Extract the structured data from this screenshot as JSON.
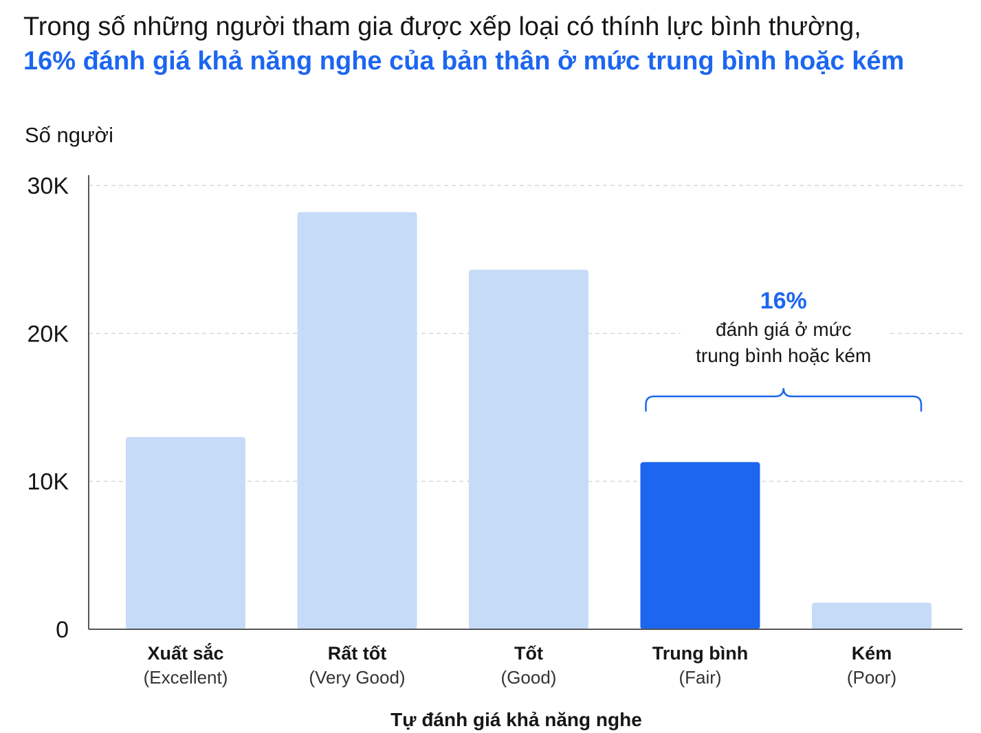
{
  "title": {
    "line1": "Trong số những người tham gia được xếp loại có thính lực bình thường,",
    "line2": "16% đánh giá khả năng nghe của bản thân ở mức trung bình hoặc kém"
  },
  "colors": {
    "bar": "#c5dbf8",
    "highlight": "#1c66f0",
    "accent_text": "#1c66f0",
    "grid": "#d6d6d6",
    "axis": "#555555"
  },
  "chart_data": {
    "type": "bar",
    "ylabel": "Số người",
    "xlabel": "Tự đánh giá khả năng nghe",
    "ylim": [
      0,
      30000
    ],
    "yticks": [
      0,
      10000,
      20000,
      30000
    ],
    "ytick_labels": [
      "0",
      "10K",
      "20K",
      "30K"
    ],
    "grid": "horizontal dashed",
    "categories": [
      {
        "label": "Xuất sắc",
        "sublabel": "(Excellent)",
        "value": 13000,
        "highlight": false
      },
      {
        "label": "Rất tốt",
        "sublabel": "(Very Good)",
        "value": 28200,
        "highlight": false
      },
      {
        "label": "Tốt",
        "sublabel": "(Good)",
        "value": 24300,
        "highlight": false
      },
      {
        "label": "Trung bình",
        "sublabel": "(Fair)",
        "value": 11300,
        "highlight": true
      },
      {
        "label": "Kém",
        "sublabel": "(Poor)",
        "value": 1800,
        "highlight": false
      }
    ],
    "annotation": {
      "percent": "16%",
      "line1": "đánh giá ở mức",
      "line2": "trung bình hoặc kém",
      "spans_categories": [
        3,
        4
      ]
    }
  }
}
